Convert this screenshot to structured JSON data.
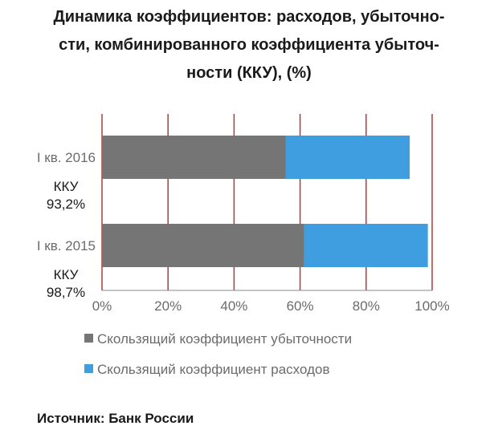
{
  "title_lines": [
    "Динамика коэффициентов: расходов, убыточно-",
    "сти, комбинированного коэффициента убыточ-",
    "ности (ККУ), (%)"
  ],
  "source": "Источник: Банк России",
  "chart_data": {
    "type": "bar",
    "orientation": "horizontal",
    "stacked": true,
    "categories": [
      "I кв. 2016",
      "I кв. 2015"
    ],
    "category_notes": [
      [
        "ККУ",
        "93,2%"
      ],
      [
        "ККУ",
        "98,7%"
      ]
    ],
    "series": [
      {
        "name": "Скользящий коэффициент убыточности",
        "color": "#757575",
        "values": [
          55.7,
          61.2
        ]
      },
      {
        "name": "Скользящий коэффициент расходов",
        "color": "#3e9ee0",
        "values": [
          37.5,
          37.5
        ]
      }
    ],
    "xlim": [
      0,
      100
    ],
    "xticks": [
      "0%",
      "20%",
      "40%",
      "60%",
      "80%",
      "100%"
    ],
    "grid": "vertical",
    "gridline_color": "#b03a3a",
    "legend_position": "bottom"
  }
}
